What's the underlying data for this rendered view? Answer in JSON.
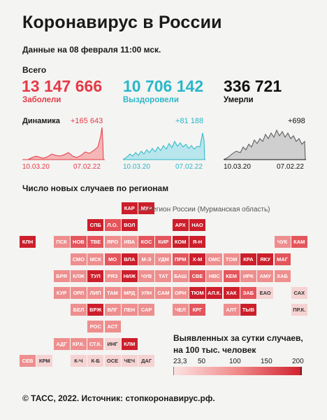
{
  "title": "Коронавирус в России",
  "date": "Данные на 08 февраля 11:00 мск.",
  "totals": {
    "label": "Всего",
    "infected": {
      "value": "13 147 666",
      "label": "Заболели",
      "color": "#e63946"
    },
    "recovered": {
      "value": "10 706 142",
      "label": "Выздоровели",
      "color": "#2ab7ca"
    },
    "died": {
      "value": "336 721",
      "label": "Умерли",
      "color": "#111111"
    }
  },
  "dynamics": {
    "label": "Динамика",
    "infected_delta": "+165 643",
    "recovered_delta": "+81 188",
    "died_delta": "+698",
    "start_date": "10.03.20",
    "end_date": "07.02.22"
  },
  "regions_title": "Число новых случаев по регионам",
  "callout": "Регион России (Мурманская область)",
  "legend": {
    "title_line1": "Выявленных за сутки случаев,",
    "title_line2": "на 100 тыс. человек",
    "ticks": [
      "23,3",
      "50",
      "100",
      "150",
      "200"
    ]
  },
  "footer": "© ТАСС, 2022. Источник: стопкоронавирус.рф.",
  "chart_data": [
    {
      "type": "area",
      "title": "Динамика",
      "series": [
        {
          "name": "Заболели",
          "last_value": 165643
        }
      ],
      "x_range": [
        "10.03.20",
        "07.02.22"
      ]
    },
    {
      "type": "area",
      "series": [
        {
          "name": "Выздоровели",
          "last_value": 81188
        }
      ],
      "x_range": [
        "10.03.20",
        "07.02.22"
      ]
    },
    {
      "type": "area",
      "series": [
        {
          "name": "Умерли",
          "last_value": 698
        }
      ],
      "x_range": [
        "10.03.20",
        "07.02.22"
      ]
    },
    {
      "type": "heatmap",
      "title": "Число новых случаев по регионам",
      "scale": {
        "min": 23.3,
        "max": 200,
        "ticks": [
          23.3,
          50,
          100,
          150,
          200
        ]
      },
      "regions": [
        {
          "code": "КАР",
          "level": 3
        },
        {
          "code": "МУР",
          "level": 3
        },
        {
          "code": "СПБ",
          "level": 3
        },
        {
          "code": "Л.О.",
          "level": 2
        },
        {
          "code": "ВОЛ",
          "level": 3
        },
        {
          "code": "АРХ",
          "level": 3
        },
        {
          "code": "НАО",
          "level": 3
        },
        {
          "code": "КЛН",
          "level": 3
        },
        {
          "code": "ПСК",
          "level": 1
        },
        {
          "code": "НОВ",
          "level": 2
        },
        {
          "code": "ТВЕ",
          "level": 2
        },
        {
          "code": "ЯРО",
          "level": 1
        },
        {
          "code": "ИВА",
          "level": 1
        },
        {
          "code": "КОС",
          "level": 2
        },
        {
          "code": "КИР",
          "level": 2
        },
        {
          "code": "КОМ",
          "level": 3
        },
        {
          "code": "Я-Н",
          "level": 3
        },
        {
          "code": "ЧУК",
          "level": 1
        },
        {
          "code": "КАМ",
          "level": 2
        },
        {
          "code": "СМО",
          "level": 1
        },
        {
          "code": "МСК",
          "level": 1
        },
        {
          "code": "МО",
          "level": 2
        },
        {
          "code": "ВЛА",
          "level": 3
        },
        {
          "code": "М-Э",
          "level": 1
        },
        {
          "code": "УДМ",
          "level": 1
        },
        {
          "code": "ПРМ",
          "level": 2
        },
        {
          "code": "Х-М",
          "level": 3
        },
        {
          "code": "ОМС",
          "level": 1
        },
        {
          "code": "ТОМ",
          "level": 1
        },
        {
          "code": "КРА",
          "level": 3
        },
        {
          "code": "ЯКУ",
          "level": 3
        },
        {
          "code": "МАГ",
          "level": 2
        },
        {
          "code": "БРЯ",
          "level": 1
        },
        {
          "code": "КЛЖ",
          "level": 1
        },
        {
          "code": "ТУЛ",
          "level": 3
        },
        {
          "code": "РЯЗ",
          "level": 1
        },
        {
          "code": "НИЖ",
          "level": 3
        },
        {
          "code": "ЧУВ",
          "level": 1
        },
        {
          "code": "ТАТ",
          "level": 1
        },
        {
          "code": "БАШ",
          "level": 1
        },
        {
          "code": "СВЕ",
          "level": 2
        },
        {
          "code": "НВС",
          "level": 1
        },
        {
          "code": "КЕМ",
          "level": 2
        },
        {
          "code": "ИРК",
          "level": 1
        },
        {
          "code": "АМУ",
          "level": 1
        },
        {
          "code": "ХАБ",
          "level": 1
        },
        {
          "code": "КУР",
          "level": 1
        },
        {
          "code": "ОРЛ",
          "level": 1
        },
        {
          "code": "ЛИП",
          "level": 1
        },
        {
          "code": "ТАМ",
          "level": 1
        },
        {
          "code": "МРД",
          "level": 1
        },
        {
          "code": "УЛН",
          "level": 1
        },
        {
          "code": "САМ",
          "level": 1
        },
        {
          "code": "ОРН",
          "level": 1
        },
        {
          "code": "ТЮМ",
          "level": 3
        },
        {
          "code": "АЛ.К.",
          "level": 3
        },
        {
          "code": "ХАК",
          "level": 3
        },
        {
          "code": "ЗАБ",
          "level": 2
        },
        {
          "code": "ЕАО",
          "level": 0
        },
        {
          "code": "САХ",
          "level": 0
        },
        {
          "code": "БЕЛ",
          "level": 1
        },
        {
          "code": "ВРЖ",
          "level": 3
        },
        {
          "code": "ВЛГ",
          "level": 1
        },
        {
          "code": "ПЕН",
          "level": 1
        },
        {
          "code": "САР",
          "level": 1
        },
        {
          "code": "ЧЕЛ",
          "level": 1
        },
        {
          "code": "КРГ",
          "level": 2
        },
        {
          "code": "АЛТ",
          "level": 1
        },
        {
          "code": "ТЫВ",
          "level": 3
        },
        {
          "code": "ПР.К.",
          "level": 0
        },
        {
          "code": "РОС",
          "level": 1
        },
        {
          "code": "АСТ",
          "level": 1
        },
        {
          "code": "АДГ",
          "level": 1
        },
        {
          "code": "КР.К.",
          "level": 1
        },
        {
          "code": "СТ.К.",
          "level": 1
        },
        {
          "code": "ИНГ",
          "level": 0
        },
        {
          "code": "КЛМ",
          "level": 3
        },
        {
          "code": "СЕВ",
          "level": 1
        },
        {
          "code": "КРМ",
          "level": 0
        },
        {
          "code": "К-Ч",
          "level": 0
        },
        {
          "code": "К-Б",
          "level": 0
        },
        {
          "code": "ОСЕ",
          "level": 0
        },
        {
          "code": "ЧЕЧ",
          "level": 0
        },
        {
          "code": "ДАГ",
          "level": 0
        }
      ]
    }
  ]
}
